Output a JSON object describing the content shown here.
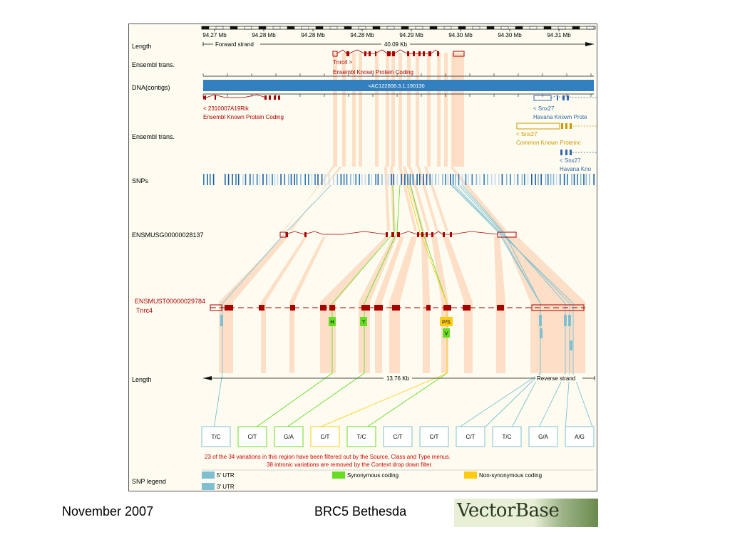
{
  "scale_ticks": [
    "94.27 Mb",
    "94.28 Mb",
    "94.28 Mb",
    "94.28 Mb",
    "94.29 Mb",
    "94.30 Mb",
    "94.30 Mb",
    "94.31 Mb"
  ],
  "tracks": {
    "length": "Length",
    "ensembl_trans_1": "Ensembl trans.",
    "dna_contigs": "DNA(contigs)",
    "ensembl_trans_2": "Ensembl trans.",
    "snps": "SNPs",
    "gene_id": "ENSMUSG00000028137",
    "length_2": "Length",
    "snp_legend": "SNP legend"
  },
  "top_length": {
    "left": "Forward strand",
    "center": "40.09 Kb"
  },
  "tnrc4_gene": {
    "name": "Tnrc4 >",
    "source": "Ensembl Known Protein Coding"
  },
  "contig": {
    "label": "<AC122808.3.1.190130"
  },
  "rik_gene": {
    "name": "< 2310007A19Rik",
    "source": "Ensembl Known Protein Coding"
  },
  "snx27": [
    {
      "name": "< Snx27",
      "source": "Havana Known Prote"
    },
    {
      "name": "< Snx27",
      "source": "Common Known Proteinc"
    },
    {
      "name": "< Snx27",
      "source": "Havana Kno"
    }
  ],
  "transcript": {
    "id": "ENSMUST00000029784",
    "name": "Tnrc4"
  },
  "bottom_length": {
    "center": "13.76 Kb",
    "right": "Reverse strand"
  },
  "markers": [
    {
      "label": "H",
      "type": "synonymous"
    },
    {
      "label": "T",
      "type": "synonymous"
    },
    {
      "label": "P/S",
      "type": "nonsynonymous"
    },
    {
      "label": "V",
      "type": "synonymous"
    }
  ],
  "alleles": [
    {
      "label": "T/C",
      "type": "utr"
    },
    {
      "label": "C/T",
      "type": "synonymous"
    },
    {
      "label": "G/A",
      "type": "synonymous"
    },
    {
      "label": "C/T",
      "type": "nonsynonymous"
    },
    {
      "label": "T/C",
      "type": "synonymous"
    },
    {
      "label": "C/T",
      "type": "utr"
    },
    {
      "label": "C/T",
      "type": "utr"
    },
    {
      "label": "C/T",
      "type": "utr"
    },
    {
      "label": "T/C",
      "type": "utr"
    },
    {
      "label": "G/A",
      "type": "utr"
    },
    {
      "label": "A/G",
      "type": "utr"
    }
  ],
  "filter_notes": [
    "23 of the 34 variations in this region have been filtered out by the Source, Class and Type menus.",
    "38 intronic variations are removed by the Context drop down filter."
  ],
  "legend": [
    {
      "label": "5' UTR",
      "color": "#7ec0d2"
    },
    {
      "label": "3' UTR",
      "color": "#7ec0d2"
    },
    {
      "label": "Synonymous coding",
      "color": "#66dd22"
    },
    {
      "label": "Non-synonymous coding",
      "color": "#ffcc11"
    }
  ],
  "colors": {
    "gene_red": "#aa0000",
    "contig_blue": "#3380c0",
    "havana_blue": "#3366aa",
    "common_gold": "#cc9900",
    "exon_band": "#fcd9be",
    "utr_blue": "#7ec0d2",
    "syn_green": "#66dd22",
    "nonsyn_yellow": "#ffcc11",
    "note_red": "#cc0000"
  },
  "footer": {
    "date": "November 2007",
    "event": "BRC5 Bethesda",
    "logo": "VectorBase"
  }
}
